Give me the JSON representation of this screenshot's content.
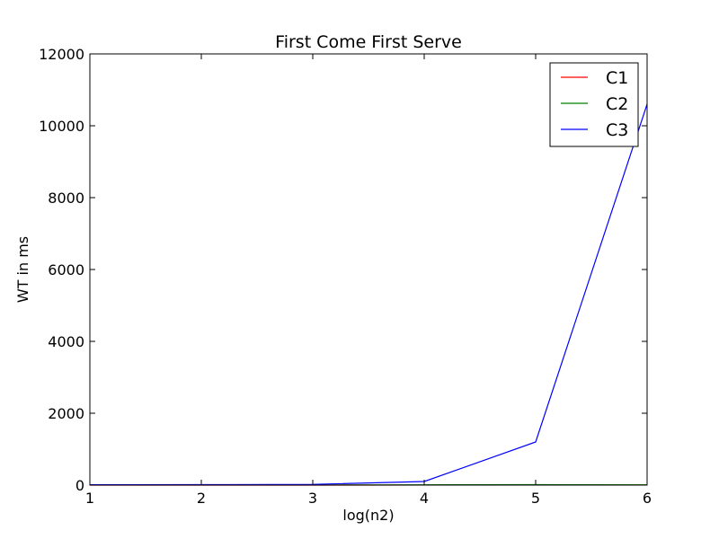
{
  "chart_data": {
    "type": "line",
    "title": "First Come First Serve",
    "xlabel": "log(n2)",
    "ylabel": "WT in ms",
    "xlim": [
      1,
      6
    ],
    "ylim": [
      0,
      12000
    ],
    "x_ticks": [
      1,
      2,
      3,
      4,
      5,
      6
    ],
    "y_ticks": [
      0,
      2000,
      4000,
      6000,
      8000,
      10000,
      12000
    ],
    "x": [
      1,
      2,
      3,
      4,
      5,
      6
    ],
    "series": [
      {
        "name": "C1",
        "color": "#ff0000",
        "values": [
          0,
          0,
          0,
          2,
          3,
          2
        ]
      },
      {
        "name": "C2",
        "color": "#008000",
        "values": [
          1,
          1,
          2,
          8,
          12,
          6
        ]
      },
      {
        "name": "C3",
        "color": "#0000ff",
        "values": [
          10,
          12,
          20,
          100,
          1200,
          10600
        ]
      }
    ],
    "legend_position": "top-right",
    "grid": false
  }
}
